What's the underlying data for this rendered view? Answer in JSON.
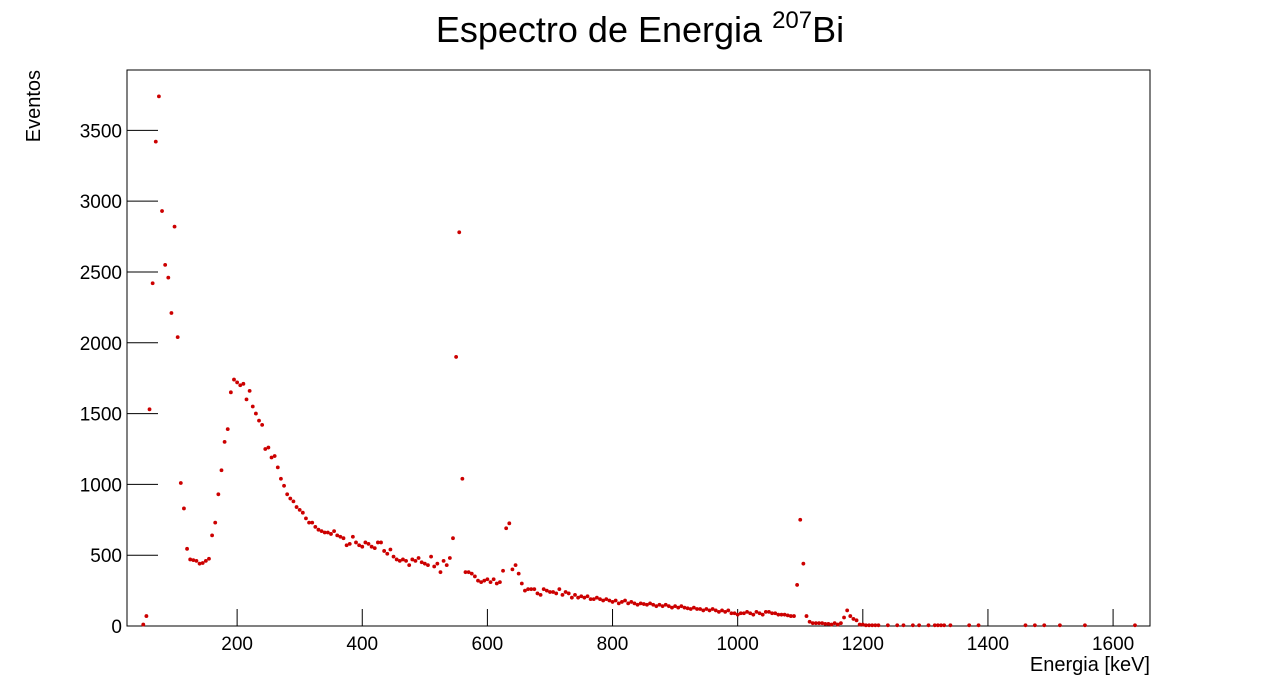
{
  "chart_data": {
    "type": "scatter",
    "title": "Espectro de Energia ",
    "title_superscript": "207",
    "title_suffix": "Bi",
    "xlabel": "Energia [keV]",
    "ylabel": "Eventos",
    "xlim": [
      24,
      1659
    ],
    "ylim": [
      0,
      3926
    ],
    "xticks": [
      200,
      400,
      600,
      800,
      1000,
      1200,
      1400,
      1600
    ],
    "yticks": [
      0,
      500,
      1000,
      1500,
      2000,
      2500,
      3000,
      3500
    ],
    "color": "#cc0000",
    "x": [
      50,
      55,
      60,
      65,
      70,
      75,
      80,
      85,
      90,
      95,
      100,
      105,
      110,
      115,
      120,
      125,
      130,
      135,
      140,
      145,
      150,
      155,
      160,
      165,
      170,
      175,
      180,
      185,
      190,
      195,
      200,
      205,
      210,
      215,
      220,
      225,
      230,
      235,
      240,
      245,
      250,
      255,
      260,
      265,
      270,
      275,
      280,
      285,
      290,
      295,
      300,
      305,
      310,
      315,
      320,
      325,
      330,
      335,
      340,
      345,
      350,
      355,
      360,
      365,
      370,
      375,
      380,
      385,
      390,
      395,
      400,
      405,
      410,
      415,
      420,
      425,
      430,
      435,
      440,
      445,
      450,
      455,
      460,
      465,
      470,
      475,
      480,
      485,
      490,
      495,
      500,
      505,
      510,
      515,
      520,
      525,
      530,
      535,
      540,
      545,
      550,
      555,
      560,
      565,
      570,
      575,
      580,
      585,
      590,
      595,
      600,
      605,
      610,
      615,
      620,
      625,
      630,
      635,
      640,
      645,
      650,
      655,
      660,
      665,
      670,
      675,
      680,
      685,
      690,
      695,
      700,
      705,
      710,
      715,
      720,
      725,
      730,
      735,
      740,
      745,
      750,
      755,
      760,
      765,
      770,
      775,
      780,
      785,
      790,
      795,
      800,
      805,
      810,
      815,
      820,
      825,
      830,
      835,
      840,
      845,
      850,
      855,
      860,
      865,
      870,
      875,
      880,
      885,
      890,
      895,
      900,
      905,
      910,
      915,
      920,
      925,
      930,
      935,
      940,
      945,
      950,
      955,
      960,
      965,
      970,
      975,
      980,
      985,
      990,
      995,
      1000,
      1005,
      1010,
      1015,
      1020,
      1025,
      1030,
      1035,
      1040,
      1045,
      1050,
      1055,
      1060,
      1065,
      1070,
      1075,
      1080,
      1085,
      1090,
      1095,
      1100,
      1105,
      1110,
      1115,
      1120,
      1125,
      1130,
      1135,
      1140,
      1145,
      1150,
      1155,
      1160,
      1165,
      1170,
      1175,
      1180,
      1185,
      1190,
      1195,
      1200,
      1205,
      1210,
      1215,
      1220,
      1225,
      1240,
      1255,
      1265,
      1280,
      1290,
      1305,
      1315,
      1320,
      1325,
      1330,
      1340,
      1370,
      1385,
      1460,
      1475,
      1490,
      1515,
      1555,
      1635
    ],
    "values": [
      10,
      70,
      1530,
      2420,
      3420,
      3740,
      2930,
      2550,
      2460,
      2210,
      2820,
      2040,
      1010,
      830,
      545,
      470,
      465,
      460,
      440,
      445,
      460,
      475,
      640,
      730,
      930,
      1100,
      1300,
      1390,
      1650,
      1740,
      1720,
      1700,
      1710,
      1600,
      1660,
      1550,
      1500,
      1450,
      1420,
      1250,
      1260,
      1190,
      1200,
      1120,
      1040,
      990,
      930,
      900,
      880,
      840,
      820,
      800,
      760,
      730,
      730,
      700,
      680,
      670,
      660,
      660,
      650,
      670,
      640,
      630,
      620,
      570,
      580,
      630,
      590,
      570,
      560,
      590,
      580,
      560,
      550,
      590,
      590,
      530,
      510,
      540,
      490,
      470,
      460,
      470,
      460,
      430,
      470,
      460,
      480,
      450,
      440,
      430,
      490,
      420,
      440,
      380,
      460,
      430,
      480,
      620,
      1900,
      2780,
      1040,
      380,
      380,
      370,
      350,
      320,
      310,
      320,
      330,
      310,
      330,
      300,
      310,
      390,
      690,
      725,
      400,
      430,
      370,
      300,
      250,
      260,
      260,
      260,
      230,
      220,
      260,
      250,
      240,
      240,
      230,
      260,
      220,
      240,
      230,
      200,
      220,
      200,
      210,
      200,
      210,
      190,
      190,
      200,
      190,
      180,
      190,
      180,
      170,
      180,
      160,
      170,
      180,
      160,
      170,
      160,
      150,
      160,
      155,
      150,
      160,
      150,
      140,
      150,
      140,
      150,
      140,
      130,
      140,
      130,
      140,
      130,
      125,
      120,
      130,
      120,
      120,
      110,
      120,
      110,
      120,
      110,
      100,
      110,
      100,
      110,
      90,
      90,
      80,
      90,
      90,
      100,
      90,
      80,
      100,
      90,
      80,
      100,
      100,
      90,
      90,
      80,
      80,
      80,
      75,
      70,
      70,
      290,
      750,
      440,
      70,
      30,
      20,
      20,
      20,
      20,
      15,
      15,
      10,
      20,
      10,
      20,
      60,
      110,
      70,
      50,
      40,
      10,
      10,
      5,
      5,
      5,
      5,
      5,
      5,
      5,
      5,
      5,
      5,
      5,
      5,
      5,
      5,
      5,
      5,
      5,
      5,
      5,
      5,
      5,
      5,
      5,
      5
    ]
  }
}
